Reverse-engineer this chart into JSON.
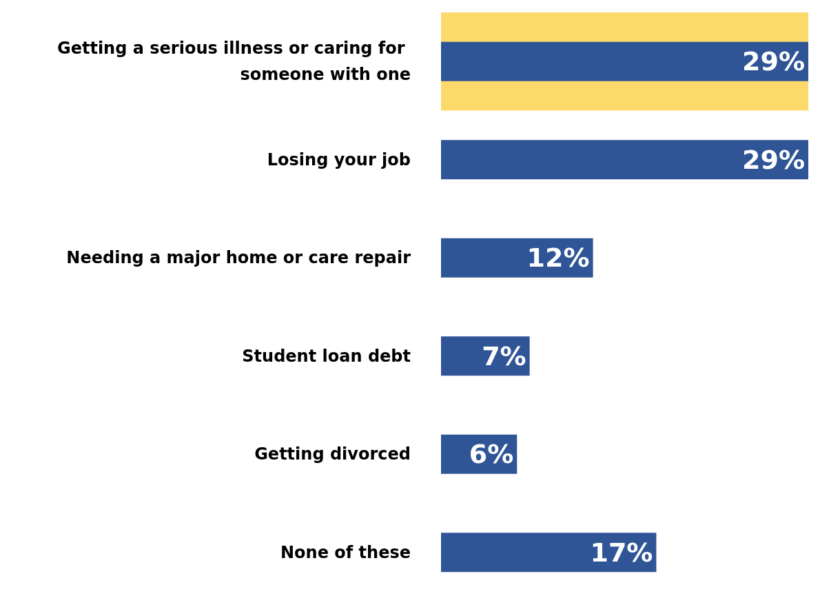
{
  "chart_data": {
    "type": "bar",
    "orientation": "horizontal",
    "categories": [
      "Getting a serious illness or caring for someone with one",
      "Losing your job",
      "Needing a major home or care repair",
      "Student loan debt",
      "Getting divorced",
      "None of these"
    ],
    "values": [
      29,
      29,
      12,
      7,
      6,
      17
    ],
    "value_labels": [
      "29%",
      "29%",
      "12%",
      "7%",
      "6%",
      "17%"
    ],
    "color": "#2f5597",
    "tick_labels": "y",
    "bands": [
      {
        "axis": "y",
        "from": "Getting a serious illness or caring for someone with one",
        "to": "Getting a serious illness or caring for someone with one",
        "color": "#fdd96b"
      }
    ]
  }
}
